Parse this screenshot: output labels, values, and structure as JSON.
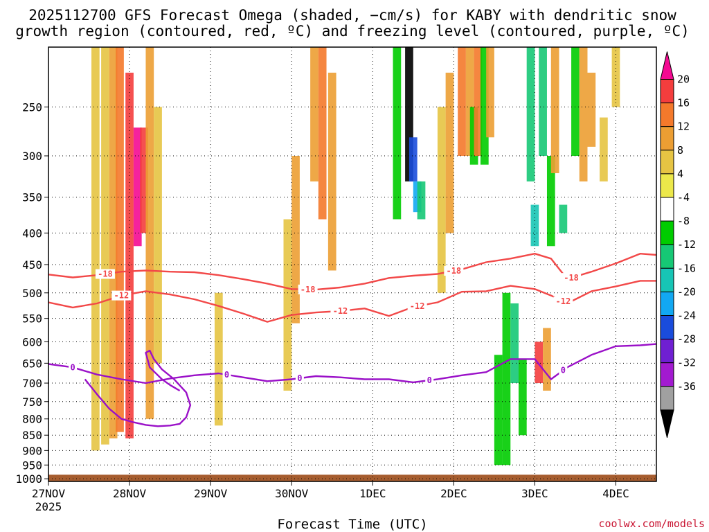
{
  "chart_data": {
    "type": "heatmap",
    "title_lines": [
      "2025112700 GFS Forecast Omega (shaded, −cm/s) for KABY with dendritic snow",
      "growth region (contoured, red, ºC) and freezing level (contoured, purple, ºC)"
    ],
    "xlabel": "Forecast Time (UTC)",
    "ylabel": "",
    "credit": "coolwx.com/models",
    "x_ticks": [
      "27NOV",
      "28NOV",
      "29NOV",
      "30NOV",
      "1DEC",
      "2DEC",
      "3DEC",
      "4DEC"
    ],
    "x_year": "2025",
    "x_range_days": [
      0,
      7.5
    ],
    "y_ticks": [
      250,
      300,
      350,
      400,
      450,
      500,
      550,
      600,
      650,
      700,
      750,
      800,
      850,
      900,
      950,
      1000
    ],
    "y_range_hpa": [
      200,
      1010
    ],
    "y_scale": "log",
    "grid": true,
    "colorbar": {
      "labels": [
        "20",
        "16",
        "12",
        "8",
        "4",
        "-4",
        "-8",
        "-12",
        "-16",
        "-20",
        "-24",
        "-28",
        "-32",
        "-36"
      ],
      "colors": [
        "#f40a92",
        "#f43d3d",
        "#f4792b",
        "#ec9e33",
        "#e6c443",
        "#ece84a",
        "#ffffff",
        "#00cc00",
        "#16c875",
        "#17c5b5",
        "#12a8f2",
        "#1a4cdc",
        "#6f1fd2",
        "#a21ad0",
        "#a0a0a0",
        "#000000"
      ]
    },
    "omega_cells": [
      {
        "t": 0.58,
        "p0": 200,
        "p1": 900,
        "v": 5
      },
      {
        "t": 0.7,
        "p0": 200,
        "p1": 880,
        "v": 7
      },
      {
        "t": 0.8,
        "p0": 200,
        "p1": 860,
        "v": 10
      },
      {
        "t": 0.88,
        "p0": 200,
        "p1": 840,
        "v": 13
      },
      {
        "t": 1.0,
        "p0": 220,
        "p1": 860,
        "v": 16
      },
      {
        "t": 1.1,
        "p0": 270,
        "p1": 420,
        "v": 21
      },
      {
        "t": 1.18,
        "p0": 270,
        "p1": 400,
        "v": 19
      },
      {
        "t": 1.25,
        "p0": 200,
        "p1": 800,
        "v": 8
      },
      {
        "t": 1.35,
        "p0": 250,
        "p1": 650,
        "v": 5
      },
      {
        "t": 0.3,
        "p0": 480,
        "p1": 600,
        "v": -6
      },
      {
        "t": 0.45,
        "p0": 350,
        "p1": 500,
        "v": -6
      },
      {
        "t": 2.1,
        "p0": 500,
        "p1": 820,
        "v": 5
      },
      {
        "t": 2.95,
        "p0": 380,
        "p1": 720,
        "v": 5
      },
      {
        "t": 3.05,
        "p0": 300,
        "p1": 560,
        "v": 9
      },
      {
        "t": 3.28,
        "p0": 200,
        "p1": 330,
        "v": 11
      },
      {
        "t": 3.38,
        "p0": 200,
        "p1": 380,
        "v": 13
      },
      {
        "t": 3.5,
        "p0": 220,
        "p1": 460,
        "v": 9
      },
      {
        "t": 3.95,
        "p0": 230,
        "p1": 480,
        "v": -7
      },
      {
        "t": 4.05,
        "p0": 230,
        "p1": 480,
        "v": -7
      },
      {
        "t": 4.3,
        "p0": 200,
        "p1": 380,
        "v": -12
      },
      {
        "t": 4.3,
        "p0": 380,
        "p1": 850,
        "v": -8
      },
      {
        "t": 4.45,
        "p0": 200,
        "p1": 330,
        "v": -37
      },
      {
        "t": 4.5,
        "p0": 280,
        "p1": 330,
        "v": -28
      },
      {
        "t": 4.55,
        "p0": 330,
        "p1": 370,
        "v": -24
      },
      {
        "t": 4.6,
        "p0": 330,
        "p1": 380,
        "v": -16
      },
      {
        "t": 4.7,
        "p0": 380,
        "p1": 940,
        "v": -8
      },
      {
        "t": 4.85,
        "p0": 250,
        "p1": 500,
        "v": 5
      },
      {
        "t": 4.95,
        "p0": 220,
        "p1": 400,
        "v": 9
      },
      {
        "t": 5.1,
        "p0": 200,
        "p1": 300,
        "v": 13
      },
      {
        "t": 5.2,
        "p0": 200,
        "p1": 300,
        "v": 9
      },
      {
        "t": 5.25,
        "p0": 250,
        "p1": 310,
        "v": -10
      },
      {
        "t": 5.3,
        "p0": 200,
        "p1": 300,
        "v": 13
      },
      {
        "t": 5.38,
        "p0": 200,
        "p1": 310,
        "v": -12
      },
      {
        "t": 5.45,
        "p0": 200,
        "p1": 280,
        "v": 9
      },
      {
        "t": 5.55,
        "p0": 630,
        "p1": 950,
        "v": -9
      },
      {
        "t": 5.65,
        "p0": 500,
        "p1": 950,
        "v": -12
      },
      {
        "t": 5.75,
        "p0": 520,
        "p1": 700,
        "v": -14
      },
      {
        "t": 5.85,
        "p0": 640,
        "p1": 850,
        "v": -9
      },
      {
        "t": 5.95,
        "p0": 200,
        "p1": 330,
        "v": -13
      },
      {
        "t": 6.0,
        "p0": 360,
        "p1": 420,
        "v": -20
      },
      {
        "t": 6.05,
        "p0": 600,
        "p1": 700,
        "v": 17
      },
      {
        "t": 6.1,
        "p0": 200,
        "p1": 300,
        "v": -15
      },
      {
        "t": 6.15,
        "p0": 570,
        "p1": 720,
        "v": 9
      },
      {
        "t": 6.2,
        "p0": 300,
        "p1": 420,
        "v": -9
      },
      {
        "t": 6.25,
        "p0": 200,
        "p1": 320,
        "v": 9
      },
      {
        "t": 6.35,
        "p0": 360,
        "p1": 400,
        "v": -14
      },
      {
        "t": 6.5,
        "p0": 200,
        "p1": 300,
        "v": -9
      },
      {
        "t": 6.6,
        "p0": 200,
        "p1": 330,
        "v": 8
      },
      {
        "t": 6.7,
        "p0": 220,
        "p1": 290,
        "v": 11
      },
      {
        "t": 6.85,
        "p0": 260,
        "p1": 330,
        "v": 5
      },
      {
        "t": 7.0,
        "p0": 200,
        "p1": 250,
        "v": 7
      },
      {
        "t": 7.2,
        "p0": 200,
        "p1": 230,
        "v": -6
      },
      {
        "t": 7.4,
        "p0": 200,
        "p1": 230,
        "v": -8
      }
    ],
    "series": [
      {
        "name": "-18",
        "color": "#f24848",
        "label_t": [
          0.7,
          3.2,
          5.0,
          6.45
        ],
        "x": [
          0,
          0.3,
          0.6,
          0.9,
          1.2,
          1.5,
          1.8,
          2.1,
          2.4,
          2.7,
          3.0,
          3.3,
          3.6,
          3.9,
          4.2,
          4.5,
          4.8,
          5.1,
          5.4,
          5.7,
          6.0,
          6.2,
          6.4,
          6.7,
          7.0,
          7.3,
          7.5
        ],
        "y": [
          467,
          472,
          468,
          462,
          460,
          462,
          463,
          468,
          475,
          483,
          493,
          494,
          490,
          483,
          473,
          469,
          466,
          458,
          446,
          440,
          432,
          440,
          475,
          462,
          448,
          432,
          434
        ]
      },
      {
        "name": "-12",
        "color": "#f24848",
        "label_t": [
          0.9,
          3.6,
          4.55,
          6.35
        ],
        "x": [
          0,
          0.3,
          0.6,
          0.9,
          1.2,
          1.5,
          1.8,
          2.1,
          2.4,
          2.7,
          3.0,
          3.3,
          3.6,
          3.9,
          4.2,
          4.5,
          4.8,
          5.1,
          5.4,
          5.7,
          6.0,
          6.2,
          6.4,
          6.7,
          7.0,
          7.3,
          7.5
        ],
        "y": [
          518,
          528,
          520,
          505,
          497,
          503,
          512,
          525,
          540,
          557,
          543,
          538,
          535,
          530,
          545,
          527,
          518,
          498,
          497,
          487,
          493,
          505,
          520,
          497,
          488,
          478,
          478
        ]
      },
      {
        "name": "0",
        "color": "#9a10c8",
        "label_t": [
          0.3,
          2.2,
          3.1,
          4.7,
          6.35
        ],
        "x": [
          0,
          0.3,
          0.6,
          0.9,
          1.2,
          1.5,
          1.8,
          2.1,
          2.4,
          2.7,
          3.0,
          3.3,
          3.6,
          3.9,
          4.2,
          4.5,
          4.8,
          5.1,
          5.4,
          5.7,
          6.0,
          6.2,
          6.4,
          6.7,
          7.0,
          7.3,
          7.5
        ],
        "y": [
          652,
          660,
          678,
          690,
          700,
          688,
          680,
          675,
          685,
          695,
          690,
          682,
          685,
          690,
          690,
          698,
          690,
          680,
          672,
          640,
          640,
          690,
          660,
          630,
          610,
          608,
          605
        ]
      },
      {
        "name": "0",
        "color": "#9a10c8",
        "label_t": [],
        "x": [
          0.45,
          0.6,
          0.75,
          0.9,
          1.05,
          1.2,
          1.35,
          1.5,
          1.62,
          1.7,
          1.75,
          1.7,
          1.55,
          1.4,
          1.3,
          1.25,
          1.2,
          1.25,
          1.4,
          1.5,
          1.62
        ],
        "y": [
          690,
          730,
          770,
          800,
          810,
          818,
          822,
          820,
          815,
          795,
          760,
          725,
          690,
          665,
          640,
          620,
          625,
          660,
          690,
          705,
          720
        ]
      }
    ],
    "surface": {
      "p0": 985,
      "p1": 1010,
      "color": "#a65d2f"
    }
  }
}
